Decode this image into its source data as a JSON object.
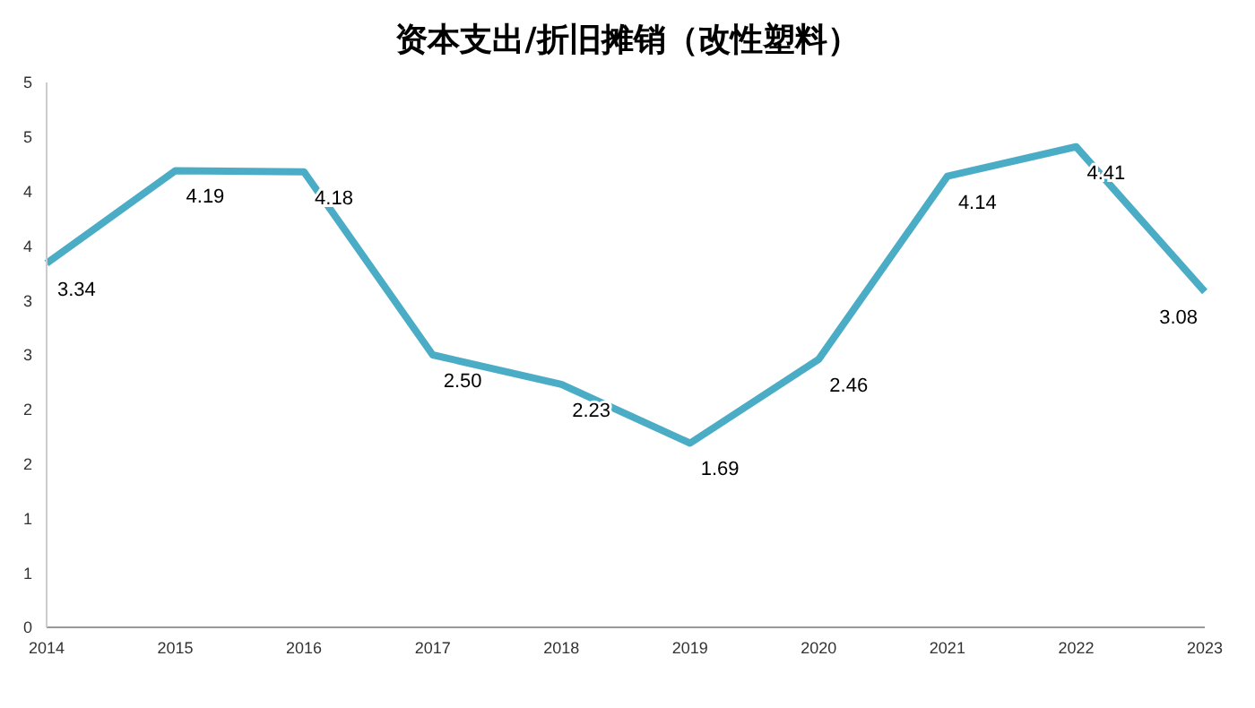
{
  "chart_data": {
    "type": "line",
    "title": "资本支出/折旧摊销（改性塑料）",
    "categories": [
      "2014",
      "2015",
      "2016",
      "2017",
      "2018",
      "2019",
      "2020",
      "2021",
      "2022",
      "2023"
    ],
    "series": [
      {
        "color": "#4bacc6",
        "values": [
          3.34,
          4.19,
          4.18,
          2.5,
          2.23,
          1.69,
          2.46,
          4.14,
          4.41,
          3.08
        ],
        "value_labels": [
          "3.34",
          "4.19",
          "4.18",
          "2.50",
          "2.23",
          "1.69",
          "2.46",
          "4.14",
          "4.41",
          "3.08"
        ]
      }
    ],
    "ylim": [
      0,
      5
    ],
    "yticks": [
      0,
      {
        "value": 0.5,
        "label": "1"
      },
      1,
      {
        "value": 1.5,
        "label": "2"
      },
      2,
      {
        "value": 2.5,
        "label": "3"
      },
      3,
      {
        "value": 3.5,
        "label": "4"
      },
      4,
      {
        "value": 4.5,
        "label": "5"
      },
      5
    ],
    "grid": false,
    "legend": false,
    "marker": "none",
    "line_style": "solid"
  }
}
